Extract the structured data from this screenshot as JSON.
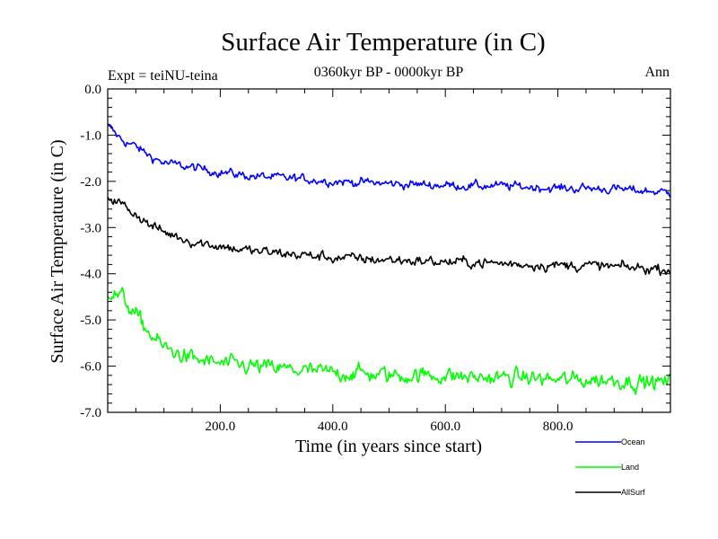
{
  "chart_data": {
    "type": "line",
    "title": "Surface Air Temperature (in C)",
    "subtitle": "0360kyr BP - 0000kyr BP",
    "experiment_label": "Expt = teiNU-teina",
    "period_label": "Ann",
    "xlabel": "Time (in years since start)",
    "ylabel": "Surface Air Temperature (in C)",
    "xlim": [
      0,
      1000
    ],
    "ylim": [
      -7.0,
      0.0
    ],
    "x_ticks": [
      200,
      400,
      600,
      800
    ],
    "x_tick_labels": [
      "200.0",
      "400.0",
      "600.0",
      "800.0"
    ],
    "y_ticks": [
      0,
      -1,
      -2,
      -3,
      -4,
      -5,
      -6,
      -7
    ],
    "y_tick_labels": [
      "0.0",
      "-1.0",
      "-2.0",
      "-3.0",
      "-4.0",
      "-5.0",
      "-6.0",
      "-7.0"
    ],
    "series": [
      {
        "name": "Ocean",
        "color": "#0000ff",
        "x": [
          0,
          25,
          50,
          75,
          100,
          150,
          200,
          250,
          300,
          350,
          400,
          450,
          500,
          550,
          600,
          650,
          700,
          750,
          800,
          850,
          900,
          950,
          1000
        ],
        "values": [
          -0.8,
          -1.1,
          -1.25,
          -1.45,
          -1.6,
          -1.7,
          -1.8,
          -1.88,
          -1.92,
          -1.95,
          -2.0,
          -2.02,
          -2.05,
          -2.07,
          -2.08,
          -2.1,
          -2.1,
          -2.12,
          -2.15,
          -2.15,
          -2.17,
          -2.2,
          -2.25
        ],
        "noise": 0.12
      },
      {
        "name": "Land",
        "color": "#00ff00",
        "x": [
          0,
          25,
          50,
          75,
          100,
          150,
          200,
          250,
          300,
          350,
          400,
          450,
          500,
          550,
          600,
          650,
          700,
          750,
          800,
          850,
          900,
          950,
          1000
        ],
        "values": [
          -4.4,
          -4.5,
          -4.9,
          -5.3,
          -5.6,
          -5.85,
          -5.95,
          -6.0,
          -6.05,
          -6.1,
          -6.15,
          -6.15,
          -6.2,
          -6.2,
          -6.2,
          -6.25,
          -6.25,
          -6.25,
          -6.3,
          -6.3,
          -6.3,
          -6.35,
          -6.35
        ],
        "noise": 0.22
      },
      {
        "name": "AllSurf",
        "color": "#000000",
        "x": [
          0,
          25,
          50,
          75,
          100,
          150,
          200,
          250,
          300,
          350,
          400,
          450,
          500,
          550,
          600,
          650,
          700,
          750,
          800,
          850,
          900,
          950,
          1000
        ],
        "values": [
          -2.3,
          -2.5,
          -2.7,
          -2.95,
          -3.1,
          -3.3,
          -3.4,
          -3.5,
          -3.55,
          -3.6,
          -3.65,
          -3.68,
          -3.7,
          -3.72,
          -3.75,
          -3.75,
          -3.78,
          -3.8,
          -3.82,
          -3.82,
          -3.85,
          -3.88,
          -3.9
        ],
        "noise": 0.14
      }
    ],
    "legend": [
      {
        "label": "Ocean",
        "color": "#0000ff"
      },
      {
        "label": "Land",
        "color": "#00ff00"
      },
      {
        "label": "AllSurf",
        "color": "#000000"
      }
    ]
  }
}
